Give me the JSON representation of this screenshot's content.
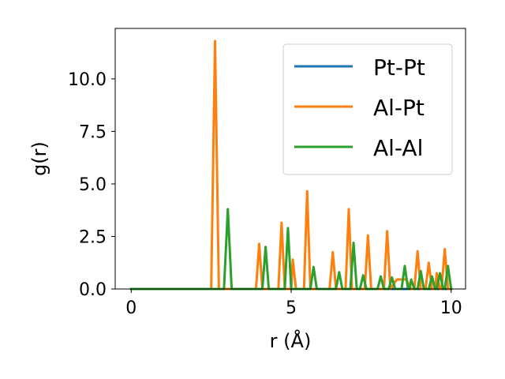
{
  "chart_data": {
    "type": "line",
    "xlabel": "r (Å)",
    "ylabel": "g(r)",
    "xlim": [
      -0.5,
      10.45
    ],
    "ylim": [
      0.0,
      12.4
    ],
    "xticks": [
      0,
      5,
      10
    ],
    "xtick_labels": [
      "0",
      "5",
      "10"
    ],
    "yticks": [
      0.0,
      2.5,
      5.0,
      7.5,
      10.0
    ],
    "ytick_labels": [
      "0.0",
      "2.5",
      "5.0",
      "7.5",
      "10.0"
    ],
    "grid": false,
    "legend_position": "top-right",
    "series": [
      {
        "name": "Pt-Pt",
        "color": "#1f77b4",
        "points": [
          [
            0.0,
            0.0
          ],
          [
            10.0,
            0.0
          ]
        ]
      },
      {
        "name": "Al-Pt",
        "color": "#ff7f0e",
        "points": [
          [
            0.0,
            0.0
          ],
          [
            2.5,
            0.0
          ],
          [
            2.62,
            11.8
          ],
          [
            2.74,
            0.0
          ],
          [
            3.9,
            0.0
          ],
          [
            4.0,
            2.15
          ],
          [
            4.1,
            0.0
          ],
          [
            4.6,
            0.0
          ],
          [
            4.7,
            3.15
          ],
          [
            4.8,
            0.0
          ],
          [
            5.0,
            0.0
          ],
          [
            5.05,
            1.4
          ],
          [
            5.15,
            0.0
          ],
          [
            5.4,
            0.0
          ],
          [
            5.5,
            4.65
          ],
          [
            5.6,
            0.0
          ],
          [
            6.2,
            0.0
          ],
          [
            6.3,
            1.75
          ],
          [
            6.4,
            0.0
          ],
          [
            6.7,
            0.0
          ],
          [
            6.8,
            3.8
          ],
          [
            6.9,
            0.0
          ],
          [
            7.3,
            0.0
          ],
          [
            7.4,
            2.55
          ],
          [
            7.5,
            0.0
          ],
          [
            7.9,
            0.0
          ],
          [
            8.0,
            2.75
          ],
          [
            8.1,
            0.0
          ],
          [
            8.3,
            0.45
          ],
          [
            8.6,
            0.45
          ],
          [
            8.75,
            0.0
          ],
          [
            8.85,
            0.0
          ],
          [
            8.95,
            1.8
          ],
          [
            9.05,
            0.0
          ],
          [
            9.2,
            0.0
          ],
          [
            9.3,
            1.25
          ],
          [
            9.4,
            0.0
          ],
          [
            9.5,
            0.0
          ],
          [
            9.55,
            0.75
          ],
          [
            9.65,
            0.0
          ],
          [
            9.7,
            0.0
          ],
          [
            9.8,
            1.9
          ],
          [
            9.9,
            0.0
          ],
          [
            10.0,
            0.0
          ]
        ]
      },
      {
        "name": "Al-Al",
        "color": "#2ca02c",
        "points": [
          [
            0.0,
            0.0
          ],
          [
            2.9,
            0.0
          ],
          [
            3.02,
            3.8
          ],
          [
            3.14,
            0.0
          ],
          [
            4.1,
            0.0
          ],
          [
            4.2,
            2.0
          ],
          [
            4.3,
            0.0
          ],
          [
            4.8,
            0.0
          ],
          [
            4.9,
            2.9
          ],
          [
            5.0,
            0.0
          ],
          [
            5.6,
            0.0
          ],
          [
            5.7,
            1.05
          ],
          [
            5.8,
            0.0
          ],
          [
            6.4,
            0.0
          ],
          [
            6.5,
            0.8
          ],
          [
            6.6,
            0.0
          ],
          [
            6.85,
            0.0
          ],
          [
            6.95,
            2.2
          ],
          [
            7.05,
            0.0
          ],
          [
            7.15,
            0.0
          ],
          [
            7.25,
            0.65
          ],
          [
            7.35,
            0.0
          ],
          [
            7.7,
            0.0
          ],
          [
            7.8,
            0.6
          ],
          [
            7.9,
            0.0
          ],
          [
            8.05,
            0.0
          ],
          [
            8.15,
            0.55
          ],
          [
            8.25,
            0.0
          ],
          [
            8.45,
            0.0
          ],
          [
            8.55,
            1.1
          ],
          [
            8.65,
            0.0
          ],
          [
            8.7,
            0.0
          ],
          [
            8.75,
            0.45
          ],
          [
            8.85,
            0.0
          ],
          [
            8.95,
            0.0
          ],
          [
            9.05,
            0.85
          ],
          [
            9.15,
            0.0
          ],
          [
            9.3,
            0.0
          ],
          [
            9.4,
            0.6
          ],
          [
            9.5,
            0.0
          ],
          [
            9.55,
            0.0
          ],
          [
            9.65,
            0.75
          ],
          [
            9.75,
            0.0
          ],
          [
            9.8,
            0.0
          ],
          [
            9.9,
            1.1
          ],
          [
            10.0,
            0.0
          ]
        ]
      }
    ]
  }
}
